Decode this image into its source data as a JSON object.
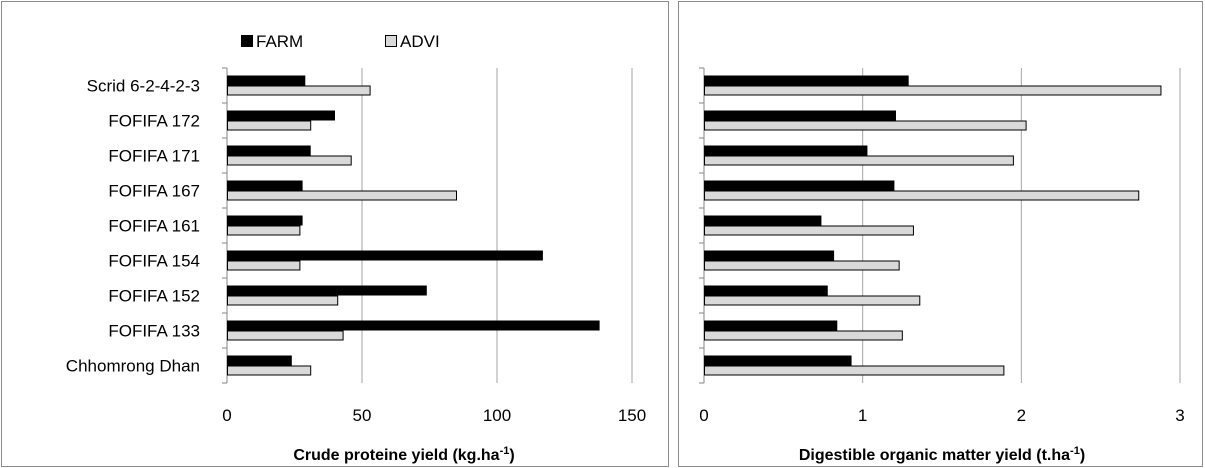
{
  "colors": {
    "farm": "#000000",
    "advi": "#d9d9d9",
    "grid": "#a6a6a6",
    "axis": "#868686",
    "frame": "#8c8c8c"
  },
  "legend": {
    "entries": [
      "FARM",
      "ADVI"
    ],
    "placement": "top"
  },
  "chart_data": [
    {
      "type": "bar",
      "orientation": "horizontal",
      "categories": [
        "Scrid 6-2-4-2-3",
        "FOFIFA 172",
        "FOFIFA 171",
        "FOFIFA 167",
        "FOFIFA 161",
        "FOFIFA 154",
        "FOFIFA 152",
        "FOFIFA 133",
        "Chhomrong Dhan"
      ],
      "series": [
        {
          "name": "FARM",
          "values": [
            29,
            40,
            31,
            28,
            28,
            117,
            74,
            138,
            24
          ]
        },
        {
          "name": "ADVI",
          "values": [
            53,
            31,
            46,
            85,
            27,
            27,
            41,
            43,
            31
          ]
        }
      ],
      "xlabel": "Crude proteine yield (kg.ha",
      "xlabel_sup": "-1",
      "xlabel_end": ")",
      "xlim": [
        0,
        150
      ],
      "xticks": [
        "0",
        "50",
        "100",
        "150"
      ],
      "grid": true,
      "show_category_labels": true
    },
    {
      "type": "bar",
      "orientation": "horizontal",
      "categories": [
        "Scrid 6-2-4-2-3",
        "FOFIFA 172",
        "FOFIFA 171",
        "FOFIFA 167",
        "FOFIFA 161",
        "FOFIFA 154",
        "FOFIFA 152",
        "FOFIFA 133",
        "Chhomrong Dhan"
      ],
      "series": [
        {
          "name": "FARM",
          "values": [
            1.29,
            1.21,
            1.03,
            1.2,
            0.74,
            0.82,
            0.78,
            0.84,
            0.93
          ]
        },
        {
          "name": "ADVI",
          "values": [
            2.88,
            2.03,
            1.95,
            2.74,
            1.32,
            1.23,
            1.36,
            1.25,
            1.89
          ]
        }
      ],
      "xlabel": "Digestible organic matter yield (t.ha",
      "xlabel_sup": "-1",
      "xlabel_end": ")",
      "xlim": [
        0,
        3
      ],
      "xticks": [
        "0",
        "1",
        "2",
        "3"
      ],
      "grid": true,
      "show_category_labels": false
    }
  ]
}
